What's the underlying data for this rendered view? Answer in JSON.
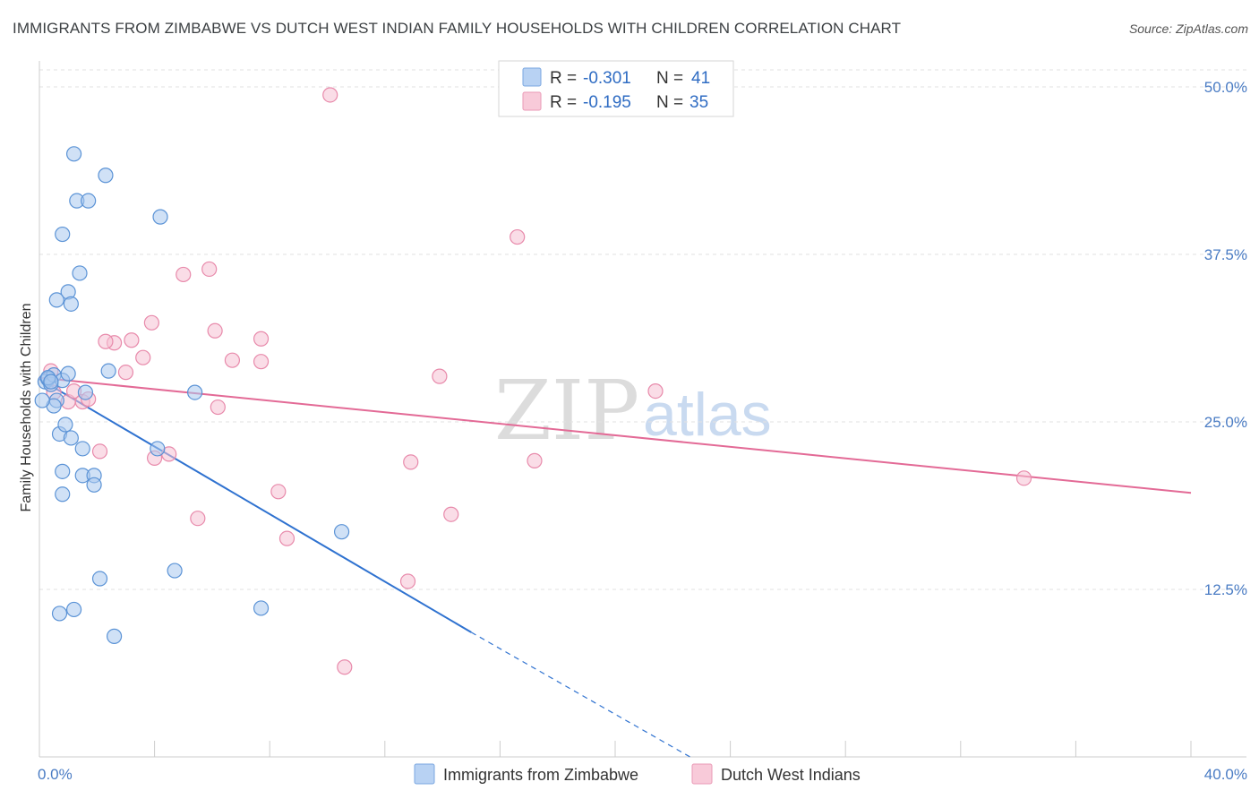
{
  "title": "IMMIGRANTS FROM ZIMBABWE VS DUTCH WEST INDIAN FAMILY HOUSEHOLDS WITH CHILDREN CORRELATION CHART",
  "source": "Source: ZipAtlas.com",
  "watermark": {
    "zip": "ZIP",
    "atlas": "atlas"
  },
  "colors": {
    "blue_fill": "#a9c8ef",
    "blue_stroke": "#5b93d6",
    "blue_line": "#2f72d0",
    "pink_fill": "#f6c1d3",
    "pink_stroke": "#e88aab",
    "pink_line": "#e36a96",
    "tick_text": "#4a7cc4",
    "grid": "#e2e2e2"
  },
  "legend": {
    "rows": [
      {
        "r_label": "R = ",
        "r_value": "-0.301",
        "n_label": "N = ",
        "n_value": "41"
      },
      {
        "r_label": "R = ",
        "r_value": "-0.195",
        "n_label": "N = ",
        "n_value": "35"
      }
    ]
  },
  "chart_data": {
    "type": "scatter",
    "title": "IMMIGRANTS FROM ZIMBABWE VS DUTCH WEST INDIAN FAMILY HOUSEHOLDS WITH CHILDREN CORRELATION CHART",
    "xlabel": "",
    "ylabel": "Family Households with Children",
    "xlim": [
      0,
      40
    ],
    "ylim": [
      0,
      50
    ],
    "x_tick_labels": [
      "0.0%",
      "40.0%"
    ],
    "y_ticks": [
      12.5,
      25.0,
      37.5,
      50.0
    ],
    "y_tick_labels": [
      "12.5%",
      "25.0%",
      "37.5%",
      "50.0%"
    ],
    "grid": true,
    "series": [
      {
        "name": "Immigrants from Zimbabwe",
        "color": "blue",
        "points": [
          [
            0.2,
            28.0
          ],
          [
            0.3,
            28.2
          ],
          [
            0.4,
            27.8
          ],
          [
            0.5,
            28.5
          ],
          [
            0.6,
            26.6
          ],
          [
            0.5,
            26.2
          ],
          [
            0.8,
            28.1
          ],
          [
            1.0,
            28.6
          ],
          [
            0.7,
            24.1
          ],
          [
            0.9,
            24.8
          ],
          [
            1.1,
            23.8
          ],
          [
            1.2,
            45.0
          ],
          [
            1.3,
            41.5
          ],
          [
            1.7,
            41.5
          ],
          [
            2.3,
            43.4
          ],
          [
            0.8,
            39.0
          ],
          [
            1.4,
            36.1
          ],
          [
            1.0,
            34.7
          ],
          [
            0.6,
            34.1
          ],
          [
            1.1,
            33.8
          ],
          [
            1.5,
            23.0
          ],
          [
            0.8,
            21.3
          ],
          [
            1.5,
            21.0
          ],
          [
            0.8,
            19.6
          ],
          [
            1.9,
            21.0
          ],
          [
            1.9,
            20.3
          ],
          [
            2.4,
            28.8
          ],
          [
            1.6,
            27.2
          ],
          [
            4.2,
            40.3
          ],
          [
            5.4,
            27.2
          ],
          [
            4.1,
            23.0
          ],
          [
            2.1,
            13.3
          ],
          [
            4.7,
            13.9
          ],
          [
            0.7,
            10.7
          ],
          [
            1.2,
            11.0
          ],
          [
            2.6,
            9.0
          ],
          [
            7.7,
            11.1
          ],
          [
            10.5,
            16.8
          ],
          [
            0.1,
            26.6
          ],
          [
            0.3,
            28.3
          ],
          [
            0.4,
            28.0
          ]
        ],
        "trend": {
          "x0": 0.0,
          "y0": 28.2,
          "x1": 15.0,
          "y1": 9.3,
          "dash_x1": 22.6,
          "dash_y1": 0.0
        }
      },
      {
        "name": "Dutch West Indians",
        "color": "pink",
        "points": [
          [
            0.4,
            28.8
          ],
          [
            0.5,
            27.2
          ],
          [
            1.0,
            26.5
          ],
          [
            1.2,
            27.3
          ],
          [
            1.5,
            26.5
          ],
          [
            1.7,
            26.7
          ],
          [
            10.1,
            49.4
          ],
          [
            16.6,
            38.8
          ],
          [
            5.0,
            36.0
          ],
          [
            5.9,
            36.4
          ],
          [
            3.9,
            32.4
          ],
          [
            6.1,
            31.8
          ],
          [
            2.6,
            30.9
          ],
          [
            2.3,
            31.0
          ],
          [
            3.2,
            31.1
          ],
          [
            7.7,
            31.2
          ],
          [
            3.6,
            29.8
          ],
          [
            6.7,
            29.6
          ],
          [
            7.7,
            29.5
          ],
          [
            3.0,
            28.7
          ],
          [
            13.9,
            28.4
          ],
          [
            21.4,
            27.3
          ],
          [
            6.2,
            26.1
          ],
          [
            2.1,
            22.8
          ],
          [
            4.0,
            22.3
          ],
          [
            4.5,
            22.6
          ],
          [
            12.9,
            22.0
          ],
          [
            17.2,
            22.1
          ],
          [
            8.3,
            19.8
          ],
          [
            5.5,
            17.8
          ],
          [
            14.3,
            18.1
          ],
          [
            8.6,
            16.3
          ],
          [
            12.8,
            13.1
          ],
          [
            10.6,
            6.7
          ],
          [
            34.2,
            20.8
          ]
        ],
        "trend": {
          "x0": 0.0,
          "y0": 28.3,
          "x1": 40.0,
          "y1": 19.7
        }
      }
    ]
  }
}
